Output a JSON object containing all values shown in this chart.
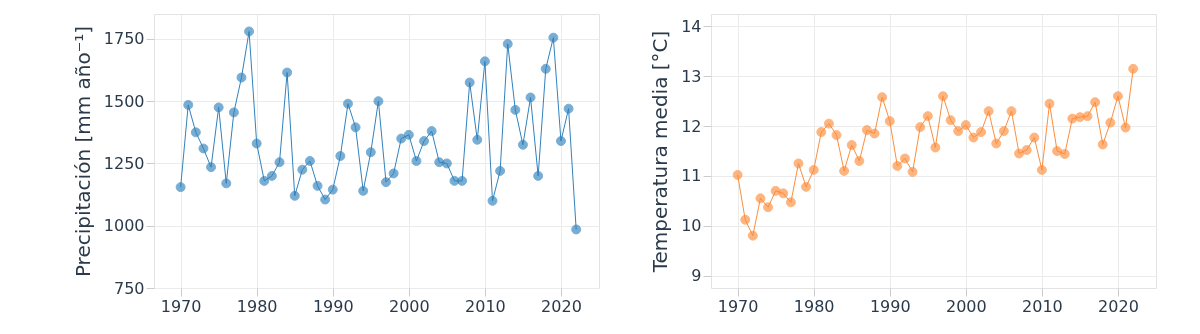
{
  "chart_data": [
    {
      "type": "line",
      "ylabel": "Precipitación [mm año⁻¹]",
      "xlim": [
        1966.5,
        2025
      ],
      "xticks": [
        1970,
        1980,
        1990,
        2000,
        2010,
        2020
      ],
      "ylim": [
        750,
        1850
      ],
      "yticks": [
        750,
        1000,
        1250,
        1500,
        1750
      ],
      "grid": true,
      "marker": "circle",
      "line_style": "solid",
      "x": [
        1970,
        1971,
        1972,
        1973,
        1974,
        1975,
        1976,
        1977,
        1978,
        1979,
        1980,
        1981,
        1982,
        1983,
        1984,
        1985,
        1986,
        1987,
        1988,
        1989,
        1990,
        1991,
        1992,
        1993,
        1994,
        1995,
        1996,
        1997,
        1998,
        1999,
        2000,
        2001,
        2002,
        2003,
        2004,
        2005,
        2006,
        2007,
        2008,
        2009,
        2010,
        2011,
        2012,
        2013,
        2014,
        2015,
        2016,
        2017,
        2018,
        2019,
        2020,
        2021,
        2022
      ],
      "series": [
        {
          "color": "#3182bd",
          "values": [
            1155,
            1485,
            1375,
            1310,
            1235,
            1475,
            1170,
            1455,
            1595,
            1780,
            1330,
            1180,
            1200,
            1255,
            1615,
            1120,
            1225,
            1260,
            1160,
            1105,
            1145,
            1280,
            1490,
            1395,
            1140,
            1295,
            1500,
            1175,
            1210,
            1350,
            1365,
            1260,
            1340,
            1380,
            1255,
            1250,
            1180,
            1180,
            1575,
            1345,
            1660,
            1100,
            1220,
            1730,
            1465,
            1325,
            1515,
            1200,
            1630,
            1755,
            1340,
            1470,
            985
          ]
        }
      ]
    },
    {
      "type": "line",
      "ylabel": "Temperatura media [°C]",
      "xlim": [
        1966.5,
        2025
      ],
      "xticks": [
        1970,
        1980,
        1990,
        2000,
        2010,
        2020
      ],
      "ylim": [
        8.75,
        14.25
      ],
      "yticks": [
        9,
        10,
        11,
        12,
        13,
        14
      ],
      "grid": true,
      "marker": "circle",
      "line_style": "solid",
      "x": [
        1970,
        1971,
        1972,
        1973,
        1974,
        1975,
        1976,
        1977,
        1978,
        1979,
        1980,
        1981,
        1982,
        1983,
        1984,
        1985,
        1986,
        1987,
        1988,
        1989,
        1990,
        1991,
        1992,
        1993,
        1994,
        1995,
        1996,
        1997,
        1998,
        1999,
        2000,
        2001,
        2002,
        2003,
        2004,
        2005,
        2006,
        2007,
        2008,
        2009,
        2010,
        2011,
        2012,
        2013,
        2014,
        2015,
        2016,
        2017,
        2018,
        2019,
        2020,
        2021,
        2022
      ],
      "series": [
        {
          "color": "#fd8d3c",
          "values": [
            11.02,
            10.12,
            9.8,
            10.55,
            10.37,
            10.7,
            10.65,
            10.47,
            11.25,
            10.78,
            11.12,
            11.88,
            12.05,
            11.82,
            11.1,
            11.62,
            11.3,
            11.92,
            11.85,
            12.58,
            12.1,
            11.2,
            11.35,
            11.08,
            11.98,
            12.2,
            11.57,
            12.6,
            12.12,
            11.9,
            12.02,
            11.77,
            11.88,
            12.3,
            11.65,
            11.9,
            12.3,
            11.45,
            11.52,
            11.77,
            11.12,
            12.45,
            11.5,
            11.44,
            12.15,
            12.18,
            12.2,
            12.48,
            11.63,
            12.07,
            12.6,
            11.97,
            13.15
          ]
        }
      ]
    }
  ]
}
